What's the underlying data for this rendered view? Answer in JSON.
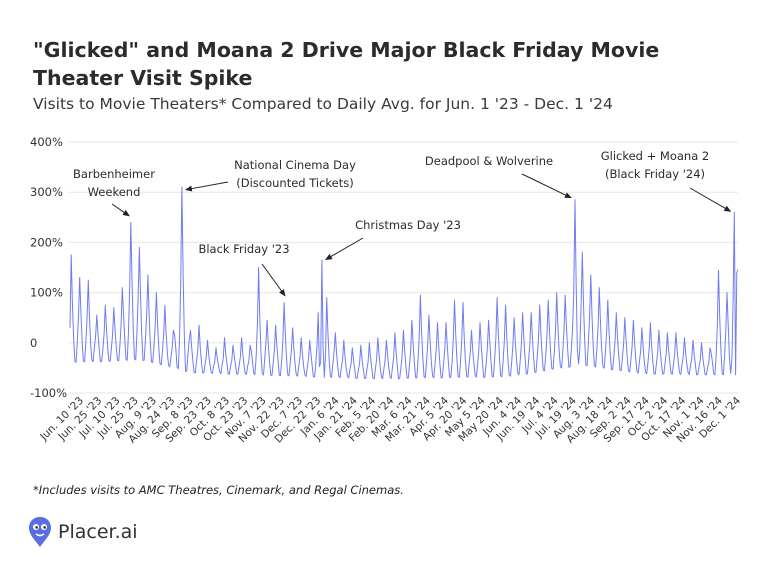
{
  "title": "\"Glicked\" and Moana 2 Drive Major Black Friday Movie Theater Visit Spike",
  "subtitle": "Visits to Movie Theaters* Compared to Daily Avg. for Jun. 1 '23 - Dec. 1 '24",
  "footnote": "*Includes visits to AMC Theatres, Cinemark, and Regal Cinemas.",
  "brand": {
    "name": "Placer.ai"
  },
  "colors": {
    "line": "#6f7df0",
    "grid": "#e6e6e6",
    "text": "#333333",
    "logo": "#5b6ee1"
  },
  "chart_data": {
    "type": "line",
    "series_name": "Visits compared to daily avg. (%)",
    "ylim": [
      -100,
      400
    ],
    "yticks": [
      -100,
      0,
      100,
      200,
      300,
      400
    ],
    "ytick_labels": [
      "-100%",
      "0",
      "100%",
      "200%",
      "300%",
      "400%"
    ],
    "xlim": [
      0,
      549
    ],
    "xtick_positions": [
      9,
      24,
      39,
      54,
      69,
      84,
      99,
      114,
      129,
      144,
      159,
      174,
      189,
      204,
      219,
      234,
      249,
      264,
      279,
      294,
      309,
      324,
      339,
      354,
      369,
      384,
      399,
      414,
      429,
      444,
      459,
      474,
      489,
      504,
      519,
      534,
      549
    ],
    "xtick_labels": [
      "Jun. 10 '23",
      "Jun. 25 '23",
      "Jul. 10 '23",
      "Jul. 25 '23",
      "Aug. 9 '23",
      "Aug. 24 '23",
      "Sep. 8 '23",
      "Sep. 23 '23",
      "Oct. 8 '23",
      "Oct. 23 '23",
      "Nov. 7 '23",
      "Nov. 22 '23",
      "Dec. 7 '23",
      "Dec. 22 '23",
      "Jan. 6 '24",
      "Jan. 21 '24",
      "Feb. 5 '24",
      "Feb. 20 '24",
      "Mar. 6 '24",
      "Mar. 21 '24",
      "Apr. 5 '24",
      "Apr. 20 '24",
      "May 5 '24",
      "May 20 '24",
      "Jun. 4 '24",
      "Jun. 19 '24",
      "Jul. 4 '24",
      "Jul. 19 '24",
      "Aug. 3 '24",
      "Aug. 18 '24",
      "Sep. 2 '24",
      "Sep. 17 '24",
      "Oct. 2 '24",
      "Oct. 17 '24",
      "Nov. 1 '24",
      "Nov. 16 '24",
      "Dec. 1 '24"
    ],
    "annotations": [
      {
        "lines": [
          "Barbenheimer",
          "Weekend"
        ],
        "day": 51,
        "value": 245
      },
      {
        "lines": [
          "National Cinema Day",
          "(Discounted Tickets)"
        ],
        "day": 92,
        "value": 310
      },
      {
        "lines": [
          "Black Friday '23"
        ],
        "day": 175,
        "value": 82
      },
      {
        "lines": [
          "Christmas Day '23"
        ],
        "day": 207,
        "value": 162
      },
      {
        "lines": [
          "Deadpool & Wolverine"
        ],
        "day": 415,
        "value": 285
      },
      {
        "lines": [
          "Glicked + Moana 2",
          "(Black Friday '24)"
        ],
        "day": 546,
        "value": 255
      }
    ],
    "peaks": [
      {
        "day": 0,
        "value": 30
      },
      {
        "day": 1,
        "value": 175
      },
      {
        "day": 8,
        "value": 130
      },
      {
        "day": 15,
        "value": 125
      },
      {
        "day": 22,
        "value": 55
      },
      {
        "day": 29,
        "value": 75
      },
      {
        "day": 36,
        "value": 70
      },
      {
        "day": 43,
        "value": 110
      },
      {
        "day": 50,
        "value": 240
      },
      {
        "day": 57,
        "value": 190
      },
      {
        "day": 64,
        "value": 135
      },
      {
        "day": 71,
        "value": 100
      },
      {
        "day": 78,
        "value": 75
      },
      {
        "day": 85,
        "value": 25
      },
      {
        "day": 92,
        "value": 310
      },
      {
        "day": 99,
        "value": 25
      },
      {
        "day": 106,
        "value": 35
      },
      {
        "day": 113,
        "value": 5
      },
      {
        "day": 120,
        "value": -10
      },
      {
        "day": 127,
        "value": 10
      },
      {
        "day": 134,
        "value": -5
      },
      {
        "day": 141,
        "value": 10
      },
      {
        "day": 148,
        "value": -5
      },
      {
        "day": 155,
        "value": 150
      },
      {
        "day": 162,
        "value": 45
      },
      {
        "day": 169,
        "value": 35
      },
      {
        "day": 176,
        "value": 80
      },
      {
        "day": 183,
        "value": 30
      },
      {
        "day": 190,
        "value": 10
      },
      {
        "day": 197,
        "value": 5
      },
      {
        "day": 204,
        "value": 60
      },
      {
        "day": 207,
        "value": 165
      },
      {
        "day": 211,
        "value": 90
      },
      {
        "day": 218,
        "value": 20
      },
      {
        "day": 225,
        "value": 5
      },
      {
        "day": 232,
        "value": -10
      },
      {
        "day": 239,
        "value": -5
      },
      {
        "day": 246,
        "value": 0
      },
      {
        "day": 253,
        "value": 10
      },
      {
        "day": 260,
        "value": 5
      },
      {
        "day": 267,
        "value": 20
      },
      {
        "day": 274,
        "value": 25
      },
      {
        "day": 281,
        "value": 45
      },
      {
        "day": 288,
        "value": 95
      },
      {
        "day": 295,
        "value": 55
      },
      {
        "day": 302,
        "value": 40
      },
      {
        "day": 309,
        "value": 40
      },
      {
        "day": 316,
        "value": 85
      },
      {
        "day": 323,
        "value": 80
      },
      {
        "day": 330,
        "value": 25
      },
      {
        "day": 337,
        "value": 40
      },
      {
        "day": 344,
        "value": 45
      },
      {
        "day": 351,
        "value": 90
      },
      {
        "day": 358,
        "value": 75
      },
      {
        "day": 365,
        "value": 50
      },
      {
        "day": 372,
        "value": 60
      },
      {
        "day": 379,
        "value": 60
      },
      {
        "day": 386,
        "value": 75
      },
      {
        "day": 393,
        "value": 85
      },
      {
        "day": 400,
        "value": 100
      },
      {
        "day": 407,
        "value": 95
      },
      {
        "day": 414,
        "value": 95
      },
      {
        "day": 415,
        "value": 285
      },
      {
        "day": 421,
        "value": 180
      },
      {
        "day": 428,
        "value": 135
      },
      {
        "day": 435,
        "value": 110
      },
      {
        "day": 442,
        "value": 85
      },
      {
        "day": 449,
        "value": 60
      },
      {
        "day": 456,
        "value": 50
      },
      {
        "day": 463,
        "value": 45
      },
      {
        "day": 470,
        "value": 30
      },
      {
        "day": 477,
        "value": 40
      },
      {
        "day": 484,
        "value": 25
      },
      {
        "day": 491,
        "value": 20
      },
      {
        "day": 498,
        "value": 20
      },
      {
        "day": 505,
        "value": 10
      },
      {
        "day": 512,
        "value": 5
      },
      {
        "day": 519,
        "value": 0
      },
      {
        "day": 526,
        "value": -10
      },
      {
        "day": 533,
        "value": 145
      },
      {
        "day": 540,
        "value": 100
      },
      {
        "day": 546,
        "value": 260
      },
      {
        "day": 548,
        "value": 140
      }
    ],
    "weekly_troughs": [
      {
        "day": 0,
        "value": -40
      },
      {
        "day": 60,
        "value": -35
      },
      {
        "day": 100,
        "value": -60
      },
      {
        "day": 250,
        "value": -72
      },
      {
        "day": 360,
        "value": -68
      },
      {
        "day": 420,
        "value": -45
      },
      {
        "day": 470,
        "value": -62
      },
      {
        "day": 549,
        "value": -65
      }
    ]
  }
}
